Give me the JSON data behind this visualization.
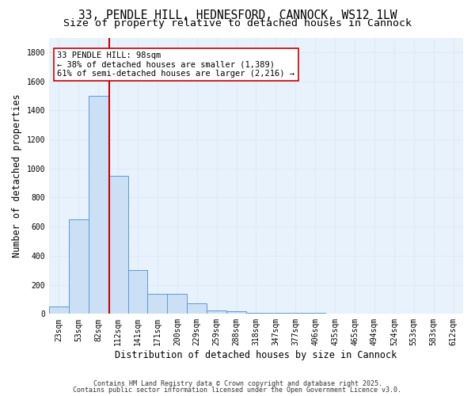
{
  "title_line1": "33, PENDLE HILL, HEDNESFORD, CANNOCK, WS12 1LW",
  "title_line2": "Size of property relative to detached houses in Cannock",
  "xlabel": "Distribution of detached houses by size in Cannock",
  "ylabel": "Number of detached properties",
  "bar_labels": [
    "23sqm",
    "53sqm",
    "82sqm",
    "112sqm",
    "141sqm",
    "171sqm",
    "200sqm",
    "229sqm",
    "259sqm",
    "288sqm",
    "318sqm",
    "347sqm",
    "377sqm",
    "406sqm",
    "435sqm",
    "465sqm",
    "494sqm",
    "524sqm",
    "553sqm",
    "583sqm",
    "612sqm"
  ],
  "bar_values": [
    50,
    650,
    1500,
    950,
    300,
    140,
    140,
    70,
    25,
    20,
    5,
    5,
    5,
    5,
    2,
    2,
    2,
    2,
    2,
    2,
    2
  ],
  "bar_color": "#cce0f5",
  "bar_edge_color": "#5b9bd5",
  "grid_color": "#ddeaf7",
  "background_color": "#e8f2fc",
  "vline_color": "#cc0000",
  "annotation_text": "33 PENDLE HILL: 98sqm\n← 38% of detached houses are smaller (1,389)\n61% of semi-detached houses are larger (2,216) →",
  "annotation_box_color": "#cc0000",
  "annotation_fill": "#ffffff",
  "ylim": [
    0,
    1900
  ],
  "yticks": [
    0,
    200,
    400,
    600,
    800,
    1000,
    1200,
    1400,
    1600,
    1800
  ],
  "footnote1": "Contains HM Land Registry data © Crown copyright and database right 2025.",
  "footnote2": "Contains public sector information licensed under the Open Government Licence v3.0.",
  "title_fontsize": 10.5,
  "subtitle_fontsize": 9.5,
  "tick_fontsize": 7,
  "ylabel_fontsize": 8.5,
  "xlabel_fontsize": 8.5,
  "annotation_fontsize": 7.5,
  "footnote_fontsize": 6
}
